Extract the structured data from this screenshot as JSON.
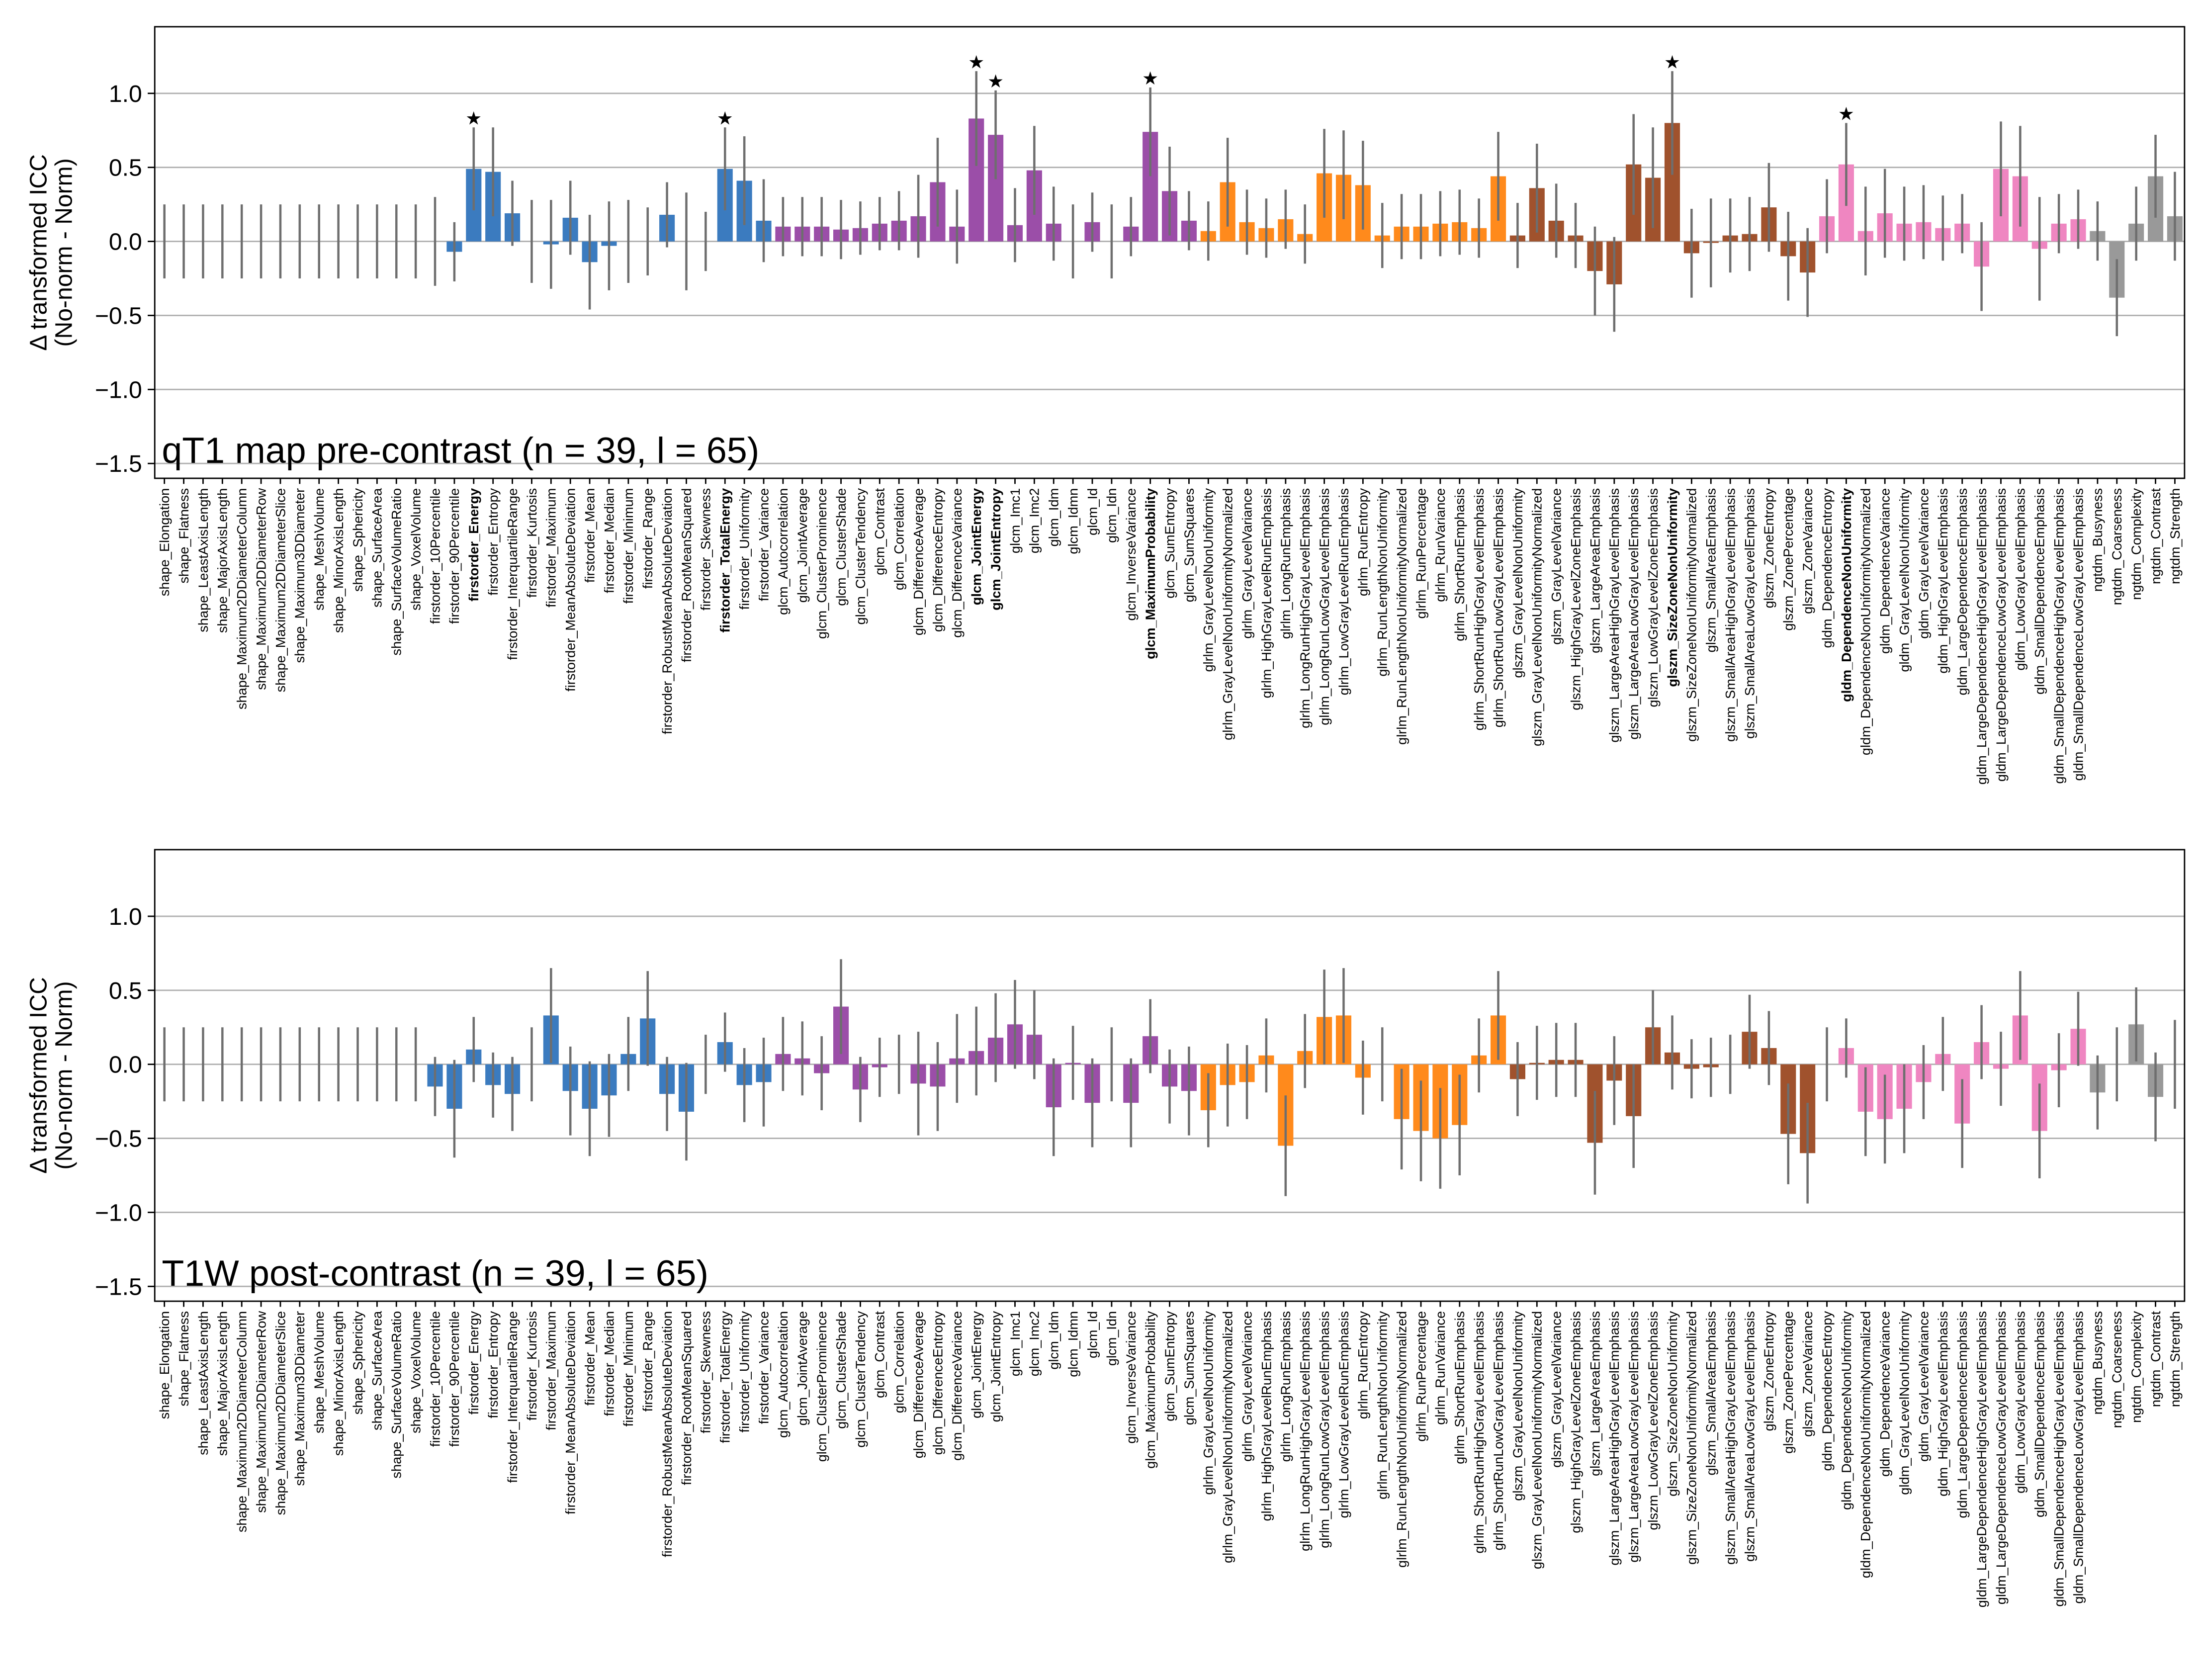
{
  "chart_data": [
    {
      "type": "bar",
      "panel_label": "qT1 map pre-contrast (n = 39, l = 65)",
      "ylabel": [
        "Δ transformed ICC",
        "(No-norm - Norm)"
      ],
      "categories": [
        "shape_Elongation",
        "shape_Flatness",
        "shape_LeastAxisLength",
        "shape_MajorAxisLength",
        "shape_Maximum2DDiameterColumn",
        "shape_Maximum2DDiameterRow",
        "shape_Maximum2DDiameterSlice",
        "shape_Maximum3DDiameter",
        "shape_MeshVolume",
        "shape_MinorAxisLength",
        "shape_Sphericity",
        "shape_SurfaceArea",
        "shape_SurfaceVolumeRatio",
        "shape_VoxelVolume",
        "firstorder_10Percentile",
        "firstorder_90Percentile",
        "firstorder_Energy",
        "firstorder_Entropy",
        "firstorder_InterquartileRange",
        "firstorder_Kurtosis",
        "firstorder_Maximum",
        "firstorder_MeanAbsoluteDeviation",
        "firstorder_Mean",
        "firstorder_Median",
        "firstorder_Minimum",
        "firstorder_Range",
        "firstorder_RobustMeanAbsoluteDeviation",
        "firstorder_RootMeanSquared",
        "firstorder_Skewness",
        "firstorder_TotalEnergy",
        "firstorder_Uniformity",
        "firstorder_Variance",
        "glcm_Autocorrelation",
        "glcm_JointAverage",
        "glcm_ClusterProminence",
        "glcm_ClusterShade",
        "glcm_ClusterTendency",
        "glcm_Contrast",
        "glcm_Correlation",
        "glcm_DifferenceAverage",
        "glcm_DifferenceEntropy",
        "glcm_DifferenceVariance",
        "glcm_JointEnergy",
        "glcm_JointEntropy",
        "glcm_Imc1",
        "glcm_Imc2",
        "glcm_Idm",
        "glcm_Idmn",
        "glcm_Id",
        "glcm_Idn",
        "glcm_InverseVariance",
        "glcm_MaximumProbability",
        "glcm_SumEntropy",
        "glcm_SumSquares",
        "glrlm_GrayLevelNonUniformity",
        "glrlm_GrayLevelNonUniformityNormalized",
        "glrlm_GrayLevelVariance",
        "glrlm_HighGrayLevelRunEmphasis",
        "glrlm_LongRunEmphasis",
        "glrlm_LongRunHighGrayLevelEmphasis",
        "glrlm_LongRunLowGrayLevelEmphasis",
        "glrlm_LowGrayLevelRunEmphasis",
        "glrlm_RunEntropy",
        "glrlm_RunLengthNonUniformity",
        "glrlm_RunLengthNonUniformityNormalized",
        "glrlm_RunPercentage",
        "glrlm_RunVariance",
        "glrlm_ShortRunEmphasis",
        "glrlm_ShortRunHighGrayLevelEmphasis",
        "glrlm_ShortRunLowGrayLevelEmphasis",
        "glszm_GrayLevelNonUniformity",
        "glszm_GrayLevelNonUniformityNormalized",
        "glszm_GrayLevelVariance",
        "glszm_HighGrayLevelZoneEmphasis",
        "glszm_LargeAreaEmphasis",
        "glszm_LargeAreaHighGrayLevelEmphasis",
        "glszm_LargeAreaLowGrayLevelEmphasis",
        "glszm_LowGrayLevelZoneEmphasis",
        "glszm_SizeZoneNonUniformity",
        "glszm_SizeZoneNonUniformityNormalized",
        "glszm_SmallAreaEmphasis",
        "glszm_SmallAreaHighGrayLevelEmphasis",
        "glszm_SmallAreaLowGrayLevelEmphasis",
        "glszm_ZoneEntropy",
        "glszm_ZonePercentage",
        "glszm_ZoneVariance",
        "gldm_DependenceEntropy",
        "gldm_DependenceNonUniformity",
        "gldm_DependenceNonUniformityNormalized",
        "gldm_DependenceVariance",
        "gldm_GrayLevelNonUniformity",
        "gldm_GrayLevelVariance",
        "gldm_HighGrayLevelEmphasis",
        "gldm_LargeDependenceEmphasis",
        "gldm_LargeDependenceHighGrayLevelEmphasis",
        "gldm_LargeDependenceLowGrayLevelEmphasis",
        "gldm_LowGrayLevelEmphasis",
        "gldm_SmallDependenceEmphasis",
        "gldm_SmallDependenceHighGrayLevelEmphasis",
        "gldm_SmallDependenceLowGrayLevelEmphasis",
        "ngtdm_Busyness",
        "ngtdm_Coarseness",
        "ngtdm_Complexity",
        "ngtdm_Contrast",
        "ngtdm_Strength"
      ],
      "values": [
        0,
        0,
        0,
        0,
        0,
        0,
        0,
        0,
        0,
        0,
        0,
        0,
        0,
        0,
        0,
        -0.07,
        0.49,
        0.47,
        0.19,
        0,
        -0.02,
        0.16,
        -0.14,
        -0.03,
        0,
        0,
        0.18,
        0,
        0,
        0.49,
        0.41,
        0.14,
        0.1,
        0.1,
        0.1,
        0.08,
        0.09,
        0.12,
        0.14,
        0.17,
        0.4,
        0.1,
        0.83,
        0.72,
        0.11,
        0.48,
        0.12,
        0,
        0.13,
        0,
        0.1,
        0.74,
        0.34,
        0.14,
        0.07,
        0.4,
        0.13,
        0.09,
        0.15,
        0.05,
        0.46,
        0.45,
        0.38,
        0.04,
        0.1,
        0.1,
        0.12,
        0.13,
        0.09,
        0.44,
        0.04,
        0.36,
        0.14,
        0.04,
        -0.2,
        -0.29,
        0.52,
        0.43,
        0.8,
        -0.08,
        -0.01,
        0.04,
        0.05,
        0.23,
        -0.1,
        -0.21,
        0.17,
        0.52,
        0.07,
        0.19,
        0.12,
        0.13,
        0.09,
        0.12,
        -0.17,
        0.49,
        0.44,
        -0.05,
        0.12,
        0.15,
        0.07,
        -0.38,
        0.12,
        0.44,
        0.17
      ],
      "errors": [
        0.25,
        0.25,
        0.25,
        0.25,
        0.25,
        0.25,
        0.25,
        0.25,
        0.25,
        0.25,
        0.25,
        0.25,
        0.25,
        0.25,
        0.3,
        0.2,
        0.28,
        0.3,
        0.22,
        0.28,
        0.3,
        0.25,
        0.32,
        0.3,
        0.28,
        0.23,
        0.22,
        0.33,
        0.2,
        0.28,
        0.3,
        0.28,
        0.2,
        0.2,
        0.2,
        0.2,
        0.18,
        0.18,
        0.2,
        0.28,
        0.3,
        0.25,
        0.32,
        0.3,
        0.25,
        0.3,
        0.25,
        0.25,
        0.2,
        0.25,
        0.2,
        0.3,
        0.3,
        0.2,
        0.2,
        0.3,
        0.22,
        0.2,
        0.2,
        0.2,
        0.3,
        0.3,
        0.3,
        0.22,
        0.22,
        0.22,
        0.22,
        0.22,
        0.2,
        0.3,
        0.22,
        0.3,
        0.25,
        0.22,
        0.3,
        0.32,
        0.34,
        0.34,
        0.35,
        0.3,
        0.3,
        0.25,
        0.25,
        0.3,
        0.3,
        0.3,
        0.25,
        0.28,
        0.3,
        0.3,
        0.25,
        0.25,
        0.22,
        0.2,
        0.3,
        0.32,
        0.34,
        0.35,
        0.2,
        0.2,
        0.2,
        0.26,
        0.25,
        0.28,
        0.3
      ],
      "significant": [
        16,
        29,
        42,
        43,
        51,
        78,
        87
      ],
      "significance_marker": "★",
      "group_colors": {
        "shape": "#8c8c8c",
        "firstorder": "#3b7bbf",
        "glcm": "#9b4ea8",
        "glrlm": "#ff8a1c",
        "glszm": "#a0522d",
        "gldm": "#ef86c1",
        "ngtdm": "#999999"
      },
      "error_color": "#6e6e6e",
      "ylim": [
        -1.6,
        1.45
      ],
      "yticks": [
        {
          "value": -1.5,
          "label": "−1.5"
        },
        {
          "value": -1,
          "label": "−1.0"
        },
        {
          "value": -0.5,
          "label": "−0.5"
        },
        {
          "value": 0,
          "label": "0.0"
        },
        {
          "value": 0.5,
          "label": "0.5"
        },
        {
          "value": 1,
          "label": "1.0"
        }
      ],
      "grid": true
    },
    {
      "type": "bar",
      "panel_label": "T1W post-contrast (n = 39, l = 65)",
      "ylabel": [
        "Δ transformed ICC",
        "(No-norm - Norm)"
      ],
      "categories": [
        "shape_Elongation",
        "shape_Flatness",
        "shape_LeastAxisLength",
        "shape_MajorAxisLength",
        "shape_Maximum2DDiameterColumn",
        "shape_Maximum2DDiameterRow",
        "shape_Maximum2DDiameterSlice",
        "shape_Maximum3DDiameter",
        "shape_MeshVolume",
        "shape_MinorAxisLength",
        "shape_Sphericity",
        "shape_SurfaceArea",
        "shape_SurfaceVolumeRatio",
        "shape_VoxelVolume",
        "firstorder_10Percentile",
        "firstorder_90Percentile",
        "firstorder_Energy",
        "firstorder_Entropy",
        "firstorder_InterquartileRange",
        "firstorder_Kurtosis",
        "firstorder_Maximum",
        "firstorder_MeanAbsoluteDeviation",
        "firstorder_Mean",
        "firstorder_Median",
        "firstorder_Minimum",
        "firstorder_Range",
        "firstorder_RobustMeanAbsoluteDeviation",
        "firstorder_RootMeanSquared",
        "firstorder_Skewness",
        "firstorder_TotalEnergy",
        "firstorder_Uniformity",
        "firstorder_Variance",
        "glcm_Autocorrelation",
        "glcm_JointAverage",
        "glcm_ClusterProminence",
        "glcm_ClusterShade",
        "glcm_ClusterTendency",
        "glcm_Contrast",
        "glcm_Correlation",
        "glcm_DifferenceAverage",
        "glcm_DifferenceEntropy",
        "glcm_DifferenceVariance",
        "glcm_JointEnergy",
        "glcm_JointEntropy",
        "glcm_Imc1",
        "glcm_Imc2",
        "glcm_Idm",
        "glcm_Idmn",
        "glcm_Id",
        "glcm_Idn",
        "glcm_InverseVariance",
        "glcm_MaximumProbability",
        "glcm_SumEntropy",
        "glcm_SumSquares",
        "glrlm_GrayLevelNonUniformity",
        "glrlm_GrayLevelNonUniformityNormalized",
        "glrlm_GrayLevelVariance",
        "glrlm_HighGrayLevelRunEmphasis",
        "glrlm_LongRunEmphasis",
        "glrlm_LongRunHighGrayLevelEmphasis",
        "glrlm_LongRunLowGrayLevelEmphasis",
        "glrlm_LowGrayLevelRunEmphasis",
        "glrlm_RunEntropy",
        "glrlm_RunLengthNonUniformity",
        "glrlm_RunLengthNonUniformityNormalized",
        "glrlm_RunPercentage",
        "glrlm_RunVariance",
        "glrlm_ShortRunEmphasis",
        "glrlm_ShortRunHighGrayLevelEmphasis",
        "glrlm_ShortRunLowGrayLevelEmphasis",
        "glszm_GrayLevelNonUniformity",
        "glszm_GrayLevelNonUniformityNormalized",
        "glszm_GrayLevelVariance",
        "glszm_HighGrayLevelZoneEmphasis",
        "glszm_LargeAreaEmphasis",
        "glszm_LargeAreaHighGrayLevelEmphasis",
        "glszm_LargeAreaLowGrayLevelEmphasis",
        "glszm_LowGrayLevelZoneEmphasis",
        "glszm_SizeZoneNonUniformity",
        "glszm_SizeZoneNonUniformityNormalized",
        "glszm_SmallAreaEmphasis",
        "glszm_SmallAreaHighGrayLevelEmphasis",
        "glszm_SmallAreaLowGrayLevelEmphasis",
        "glszm_ZoneEntropy",
        "glszm_ZonePercentage",
        "glszm_ZoneVariance",
        "gldm_DependenceEntropy",
        "gldm_DependenceNonUniformity",
        "gldm_DependenceNonUniformityNormalized",
        "gldm_DependenceVariance",
        "gldm_GrayLevelNonUniformity",
        "gldm_GrayLevelVariance",
        "gldm_HighGrayLevelEmphasis",
        "gldm_LargeDependenceEmphasis",
        "gldm_LargeDependenceHighGrayLevelEmphasis",
        "gldm_LargeDependenceLowGrayLevelEmphasis",
        "gldm_LowGrayLevelEmphasis",
        "gldm_SmallDependenceEmphasis",
        "gldm_SmallDependenceHighGrayLevelEmphasis",
        "gldm_SmallDependenceLowGrayLevelEmphasis",
        "ngtdm_Busyness",
        "ngtdm_Coarseness",
        "ngtdm_Complexity",
        "ngtdm_Contrast",
        "ngtdm_Strength"
      ],
      "values": [
        0,
        0,
        0,
        0,
        0,
        0,
        0,
        0,
        0,
        0,
        0,
        0,
        0,
        0,
        -0.15,
        -0.3,
        0.1,
        -0.14,
        -0.2,
        0,
        0.33,
        -0.18,
        -0.3,
        -0.21,
        0.07,
        0.31,
        -0.2,
        -0.32,
        0,
        0.15,
        -0.14,
        -0.12,
        0.07,
        0.04,
        -0.06,
        0.39,
        -0.17,
        -0.02,
        0,
        -0.13,
        -0.15,
        0.04,
        0.09,
        0.18,
        0.27,
        0.2,
        -0.29,
        0.01,
        -0.26,
        0,
        -0.26,
        0.19,
        -0.15,
        -0.18,
        -0.31,
        -0.14,
        -0.12,
        0.06,
        -0.55,
        0.09,
        0.32,
        0.33,
        -0.09,
        0,
        -0.37,
        -0.45,
        -0.5,
        -0.41,
        0.06,
        0.33,
        -0.1,
        0.01,
        0.03,
        0.03,
        -0.53,
        -0.11,
        -0.35,
        0.25,
        0.08,
        -0.03,
        -0.02,
        0,
        0.22,
        0.11,
        -0.47,
        -0.6,
        0,
        0.11,
        -0.32,
        -0.37,
        -0.3,
        -0.12,
        0.07,
        -0.4,
        0.15,
        -0.03,
        0.33,
        -0.45,
        -0.04,
        0.24,
        -0.19,
        0,
        0.27,
        -0.22,
        0
      ],
      "errors": [
        0.25,
        0.25,
        0.25,
        0.25,
        0.25,
        0.25,
        0.25,
        0.25,
        0.25,
        0.25,
        0.25,
        0.25,
        0.25,
        0.25,
        0.2,
        0.33,
        0.22,
        0.22,
        0.25,
        0.25,
        0.32,
        0.3,
        0.32,
        0.28,
        0.25,
        0.32,
        0.25,
        0.33,
        0.2,
        0.2,
        0.25,
        0.3,
        0.25,
        0.25,
        0.25,
        0.32,
        0.22,
        0.2,
        0.2,
        0.35,
        0.3,
        0.3,
        0.3,
        0.3,
        0.3,
        0.3,
        0.33,
        0.25,
        0.3,
        0.25,
        0.3,
        0.25,
        0.25,
        0.3,
        0.25,
        0.28,
        0.25,
        0.25,
        0.34,
        0.25,
        0.32,
        0.32,
        0.25,
        0.25,
        0.34,
        0.34,
        0.34,
        0.34,
        0.25,
        0.3,
        0.25,
        0.25,
        0.25,
        0.25,
        0.35,
        0.3,
        0.35,
        0.25,
        0.25,
        0.2,
        0.2,
        0.2,
        0.25,
        0.25,
        0.34,
        0.34,
        0.25,
        0.2,
        0.3,
        0.3,
        0.3,
        0.25,
        0.25,
        0.3,
        0.25,
        0.25,
        0.3,
        0.32,
        0.25,
        0.25,
        0.25,
        0.25,
        0.25,
        0.3,
        0.3
      ],
      "significant": [],
      "group_colors": {
        "shape": "#8c8c8c",
        "firstorder": "#3b7bbf",
        "glcm": "#9b4ea8",
        "glrlm": "#ff8a1c",
        "glszm": "#a0522d",
        "gldm": "#ef86c1",
        "ngtdm": "#999999"
      },
      "error_color": "#6e6e6e",
      "ylim": [
        -1.6,
        1.45
      ],
      "yticks": [
        {
          "value": -1.5,
          "label": "−1.5"
        },
        {
          "value": -1,
          "label": "−1.0"
        },
        {
          "value": -0.5,
          "label": "−0.5"
        },
        {
          "value": 0,
          "label": "0.0"
        },
        {
          "value": 0.5,
          "label": "0.5"
        },
        {
          "value": 1,
          "label": "1.0"
        }
      ],
      "grid": true
    }
  ]
}
